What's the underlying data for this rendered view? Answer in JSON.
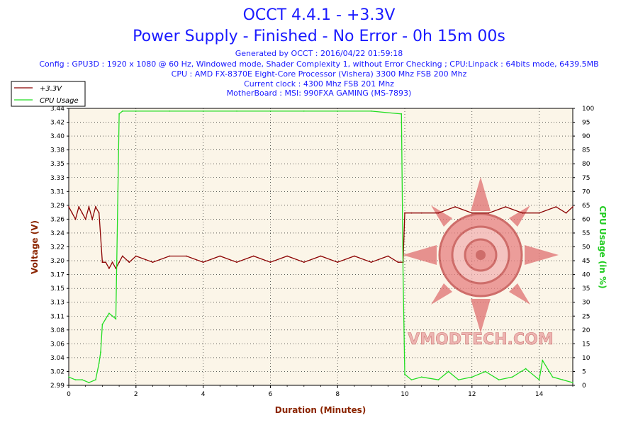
{
  "header": {
    "title": "OCCT 4.4.1 - +3.3V",
    "subtitle": "Power Supply - Finished - No Error - 0h 15m 00s",
    "generated": "Generated by OCCT : 2016/04/22 01:59:18",
    "config": "Config : GPU3D : 1920 x 1080 @ 60 Hz, Windowed mode, Shader Complexity 1, without Error Checking ; CPU:Linpack : 64bits mode, 6439.5MB",
    "cpu": "CPU : AMD FX-8370E Eight-Core Processor (Vishera) 3300 Mhz FSB 200 Mhz",
    "clock": "Current clock : 4300 Mhz FSB 201 Mhz",
    "motherboard": "MotherBoard : MSI: 990FXA GAMING (MS-7893)"
  },
  "watermark": {
    "text": "VMODTECH.COM"
  },
  "colors": {
    "voltage": "#8b0000",
    "cpu": "#22dd22",
    "title": "#1a1aff",
    "plot_bg": "#fbf5e8",
    "axis_x_label": "#8b2500",
    "axis_y_label": "#8b2500",
    "axis_y2_label": "#22cc22"
  },
  "chart_data": {
    "type": "line",
    "xlabel": "Duration (Minutes)",
    "ylabel": "Voltage (V)",
    "y2label": "CPU Usage (in %)",
    "xlim": [
      0,
      15
    ],
    "ylim": [
      2.99,
      3.44
    ],
    "y2lim": [
      0,
      100
    ],
    "x_ticks": [
      "0",
      "2",
      "4",
      "6",
      "8",
      "10",
      "12",
      "14"
    ],
    "y_ticks": [
      "2.99",
      "3.02",
      "3.04",
      "3.06",
      "3.08",
      "3.11",
      "3.13",
      "3.15",
      "3.17",
      "3.20",
      "3.22",
      "3.24",
      "3.26",
      "3.29",
      "3.31",
      "3.33",
      "3.35",
      "3.38",
      "3.40",
      "3.42",
      "3.44"
    ],
    "y2_ticks": [
      "0",
      "5",
      "10",
      "15",
      "20",
      "25",
      "30",
      "35",
      "40",
      "45",
      "50",
      "55",
      "60",
      "65",
      "70",
      "75",
      "80",
      "85",
      "90",
      "95",
      "100"
    ],
    "legend_position": "top-left",
    "grid": true,
    "series": [
      {
        "name": "+3.3V",
        "axis": "left",
        "x": [
          0,
          0.1,
          0.2,
          0.3,
          0.4,
          0.5,
          0.6,
          0.7,
          0.8,
          0.9,
          1.0,
          1.05,
          1.1,
          1.2,
          1.3,
          1.4,
          1.5,
          1.6,
          1.8,
          2.0,
          2.5,
          3.0,
          3.5,
          4.0,
          4.5,
          5.0,
          5.5,
          6.0,
          6.5,
          7.0,
          7.5,
          8.0,
          8.5,
          9.0,
          9.5,
          9.8,
          9.95,
          10.0,
          10.2,
          10.5,
          11.0,
          11.5,
          12.0,
          12.5,
          13.0,
          13.5,
          14.0,
          14.5,
          14.8,
          15.0
        ],
        "values": [
          3.28,
          3.27,
          3.26,
          3.28,
          3.27,
          3.26,
          3.28,
          3.26,
          3.28,
          3.27,
          3.19,
          3.19,
          3.19,
          3.18,
          3.19,
          3.18,
          3.19,
          3.2,
          3.19,
          3.2,
          3.19,
          3.2,
          3.2,
          3.19,
          3.2,
          3.19,
          3.2,
          3.19,
          3.2,
          3.19,
          3.2,
          3.19,
          3.2,
          3.19,
          3.2,
          3.19,
          3.19,
          3.27,
          3.27,
          3.27,
          3.27,
          3.28,
          3.27,
          3.27,
          3.28,
          3.27,
          3.27,
          3.28,
          3.27,
          3.28
        ]
      },
      {
        "name": "CPU Usage",
        "axis": "right",
        "x": [
          0,
          0.2,
          0.4,
          0.6,
          0.8,
          0.9,
          0.95,
          1.0,
          1.1,
          1.2,
          1.3,
          1.4,
          1.45,
          1.5,
          1.6,
          2.0,
          3.0,
          4.0,
          5.0,
          6.0,
          7.0,
          8.0,
          9.0,
          9.9,
          9.95,
          10.0,
          10.2,
          10.5,
          11.0,
          11.3,
          11.6,
          12.0,
          12.4,
          12.8,
          13.2,
          13.6,
          14.0,
          14.1,
          14.4,
          14.7,
          15.0
        ],
        "values": [
          3,
          2,
          2,
          1,
          2,
          8,
          12,
          22,
          24,
          26,
          25,
          24,
          60,
          98,
          99,
          99,
          99,
          99,
          99,
          99,
          99,
          99,
          99,
          98,
          40,
          4,
          2,
          3,
          2,
          5,
          2,
          3,
          5,
          2,
          3,
          6,
          2,
          9,
          3,
          2,
          1
        ]
      }
    ]
  }
}
